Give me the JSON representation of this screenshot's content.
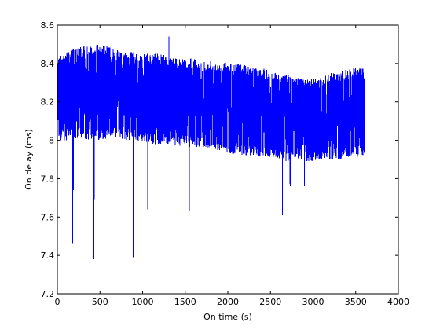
{
  "chart_data": {
    "type": "line",
    "title": "",
    "xlabel": "On time (s)",
    "ylabel": "On delay (ms)",
    "xlim": [
      0,
      4000
    ],
    "ylim": [
      7.2,
      8.6
    ],
    "xticks": [
      0,
      500,
      1000,
      1500,
      2000,
      2500,
      3000,
      3500,
      4000
    ],
    "xtick_labels": [
      "0",
      "500",
      "1000",
      "1500",
      "2000",
      "2500",
      "3000",
      "3500",
      "4000"
    ],
    "yticks": [
      7.2,
      7.4,
      7.6,
      7.8,
      8,
      8.2,
      8.4,
      8.6
    ],
    "ytick_labels": [
      "7.2",
      "7.4",
      "7.6",
      "7.8",
      "8",
      "8.2",
      "8.4",
      "8.6"
    ],
    "grid": false,
    "legend": "none",
    "line_color": "#0000ff",
    "series": [
      {
        "x_range": [
          0,
          3600
        ],
        "upper_envelope": {
          "x": [
            0,
            100,
            200,
            300,
            400,
            500,
            600,
            700,
            800,
            900,
            1000,
            1100,
            1200,
            1300,
            1400,
            1500,
            1600,
            1700,
            1800,
            1900,
            2000,
            2100,
            2200,
            2300,
            2400,
            2500,
            2600,
            2700,
            2800,
            2900,
            3000,
            3100,
            3200,
            3300,
            3400,
            3500,
            3600
          ],
          "y": [
            8.44,
            8.46,
            8.48,
            8.49,
            8.5,
            8.5,
            8.49,
            8.47,
            8.46,
            8.46,
            8.45,
            8.45,
            8.46,
            8.44,
            8.43,
            8.42,
            8.43,
            8.41,
            8.42,
            8.4,
            8.41,
            8.4,
            8.4,
            8.38,
            8.38,
            8.36,
            8.35,
            8.34,
            8.33,
            8.32,
            8.32,
            8.33,
            8.35,
            8.36,
            8.37,
            8.38,
            8.39
          ]
        },
        "lower_envelope": {
          "x": [
            0,
            100,
            200,
            300,
            400,
            500,
            600,
            700,
            800,
            900,
            1000,
            1100,
            1200,
            1300,
            1400,
            1500,
            1600,
            1700,
            1800,
            1900,
            2000,
            2100,
            2200,
            2300,
            2400,
            2500,
            2600,
            2700,
            2800,
            2900,
            3000,
            3100,
            3200,
            3300,
            3400,
            3500,
            3600
          ],
          "y": [
            8.0,
            8.0,
            8.01,
            8.01,
            8.0,
            8.0,
            8.01,
            8.01,
            8.0,
            8.0,
            7.99,
            7.98,
            7.98,
            7.98,
            7.97,
            7.97,
            7.96,
            7.96,
            7.95,
            7.94,
            7.93,
            7.93,
            7.92,
            7.92,
            7.91,
            7.91,
            7.9,
            7.89,
            7.89,
            7.89,
            7.89,
            7.9,
            7.9,
            7.9,
            7.91,
            7.91,
            7.92
          ]
        },
        "dips": [
          {
            "x": 180,
            "y": 7.46
          },
          {
            "x": 190,
            "y": 7.74
          },
          {
            "x": 430,
            "y": 7.38
          },
          {
            "x": 890,
            "y": 7.39
          },
          {
            "x": 1060,
            "y": 7.64
          },
          {
            "x": 1550,
            "y": 7.63
          },
          {
            "x": 1930,
            "y": 7.81
          },
          {
            "x": 2530,
            "y": 7.85
          },
          {
            "x": 2640,
            "y": 7.61
          },
          {
            "x": 2660,
            "y": 7.53
          },
          {
            "x": 2730,
            "y": 7.76
          },
          {
            "x": 2900,
            "y": 7.76
          }
        ],
        "spikes": [
          {
            "x": 1310,
            "y": 8.54
          }
        ]
      }
    ]
  }
}
